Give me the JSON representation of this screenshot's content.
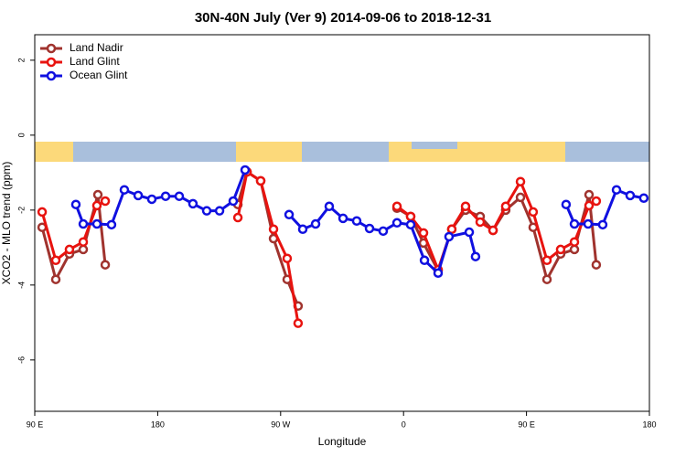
{
  "chart_data": {
    "type": "line",
    "title": "30N-40N July (Ver 9)   2014-09-06 to 2018-12-31",
    "xlabel": "Longitude",
    "ylabel": "XCO2 - MLO trend (ppm)",
    "xlim": [
      90,
      540
    ],
    "ylim": [
      -7.37,
      2.68
    ],
    "xticks": [
      {
        "value": 90,
        "label": "90 E"
      },
      180,
      {
        "value": 270,
        "label": "90 W"
      },
      {
        "value": 360,
        "label": "0"
      },
      {
        "value": 450,
        "label": "90 E"
      },
      {
        "value": 540,
        "label": "180"
      }
    ],
    "yticks": [
      2,
      0,
      -2,
      -4,
      -6
    ],
    "legend": "top-left",
    "series": [
      {
        "name": "Land Nadir",
        "color": "#a0332e",
        "x": [
          95.4,
          105.4,
          115.4,
          125.5,
          136.2,
          141.6,
          null,
          238.7,
          245.4,
          255.4,
          264.8,
          274.8,
          282.8,
          null,
          355.2,
          365.2,
          374.6,
          385.3,
          395.3,
          405.4,
          416.1,
          425.5,
          434.8,
          445.6,
          454.9,
          465.0,
          475.0,
          485.1,
          495.8,
          501.1
        ],
        "values": [
          -2.46,
          -3.85,
          -3.17,
          -3.05,
          -1.59,
          -3.46,
          null,
          -1.85,
          -0.98,
          -1.22,
          -2.76,
          -3.85,
          -4.56,
          null,
          -1.95,
          -2.17,
          -2.88,
          -3.61,
          -2.51,
          -2.0,
          -2.17,
          -2.54,
          -2.0,
          -1.66,
          -2.46,
          -3.85,
          -3.17,
          -3.05,
          -1.59,
          -3.46
        ]
      },
      {
        "name": "Land Glint",
        "color": "#e8130f",
        "x": [
          95.4,
          105.4,
          115.4,
          125.5,
          135.5,
          141.6,
          null,
          238.7,
          245.4,
          255.4,
          264.8,
          274.8,
          282.8,
          null,
          355.2,
          365.2,
          374.6,
          385.3,
          395.3,
          405.4,
          416.1,
          425.5,
          434.8,
          445.6,
          454.9,
          465.0,
          475.0,
          485.1,
          495.8,
          501.1
        ],
        "values": [
          -2.05,
          -3.34,
          -3.05,
          -2.85,
          -1.88,
          -1.76,
          null,
          -2.2,
          -0.98,
          -1.22,
          -2.51,
          -3.29,
          -5.02,
          null,
          -1.9,
          -2.17,
          -2.61,
          -3.59,
          -2.51,
          -1.9,
          -2.32,
          -2.54,
          -1.9,
          -1.24,
          -2.05,
          -3.34,
          -3.05,
          -2.85,
          -1.88,
          -1.76
        ]
      },
      {
        "name": "Ocean Glint",
        "color": "#1010e0",
        "x": [
          120.1,
          125.5,
          135.5,
          146.2,
          155.6,
          165.7,
          175.7,
          185.8,
          195.8,
          205.8,
          215.9,
          225.3,
          235.3,
          244.0,
          null,
          276.2,
          286.2,
          295.6,
          305.6,
          315.7,
          325.7,
          335.1,
          345.1,
          355.2,
          365.2,
          375.3,
          385.3,
          393.3,
          408.1,
          412.7,
          null,
          479.0,
          485.1,
          495.1,
          505.8,
          515.9,
          525.9,
          535.9
        ],
        "values": [
          -1.85,
          -2.37,
          -2.37,
          -2.39,
          -1.46,
          -1.61,
          -1.71,
          -1.63,
          -1.63,
          -1.83,
          -2.02,
          -2.02,
          -1.76,
          -0.93,
          null,
          -2.12,
          -2.51,
          -2.37,
          -1.9,
          -2.22,
          -2.29,
          -2.49,
          -2.56,
          -2.34,
          -2.39,
          -3.34,
          -3.68,
          -2.71,
          -2.59,
          -3.24,
          null,
          -1.85,
          -2.37,
          -2.37,
          -2.39,
          -1.46,
          -1.61,
          -1.68
        ]
      }
    ]
  }
}
